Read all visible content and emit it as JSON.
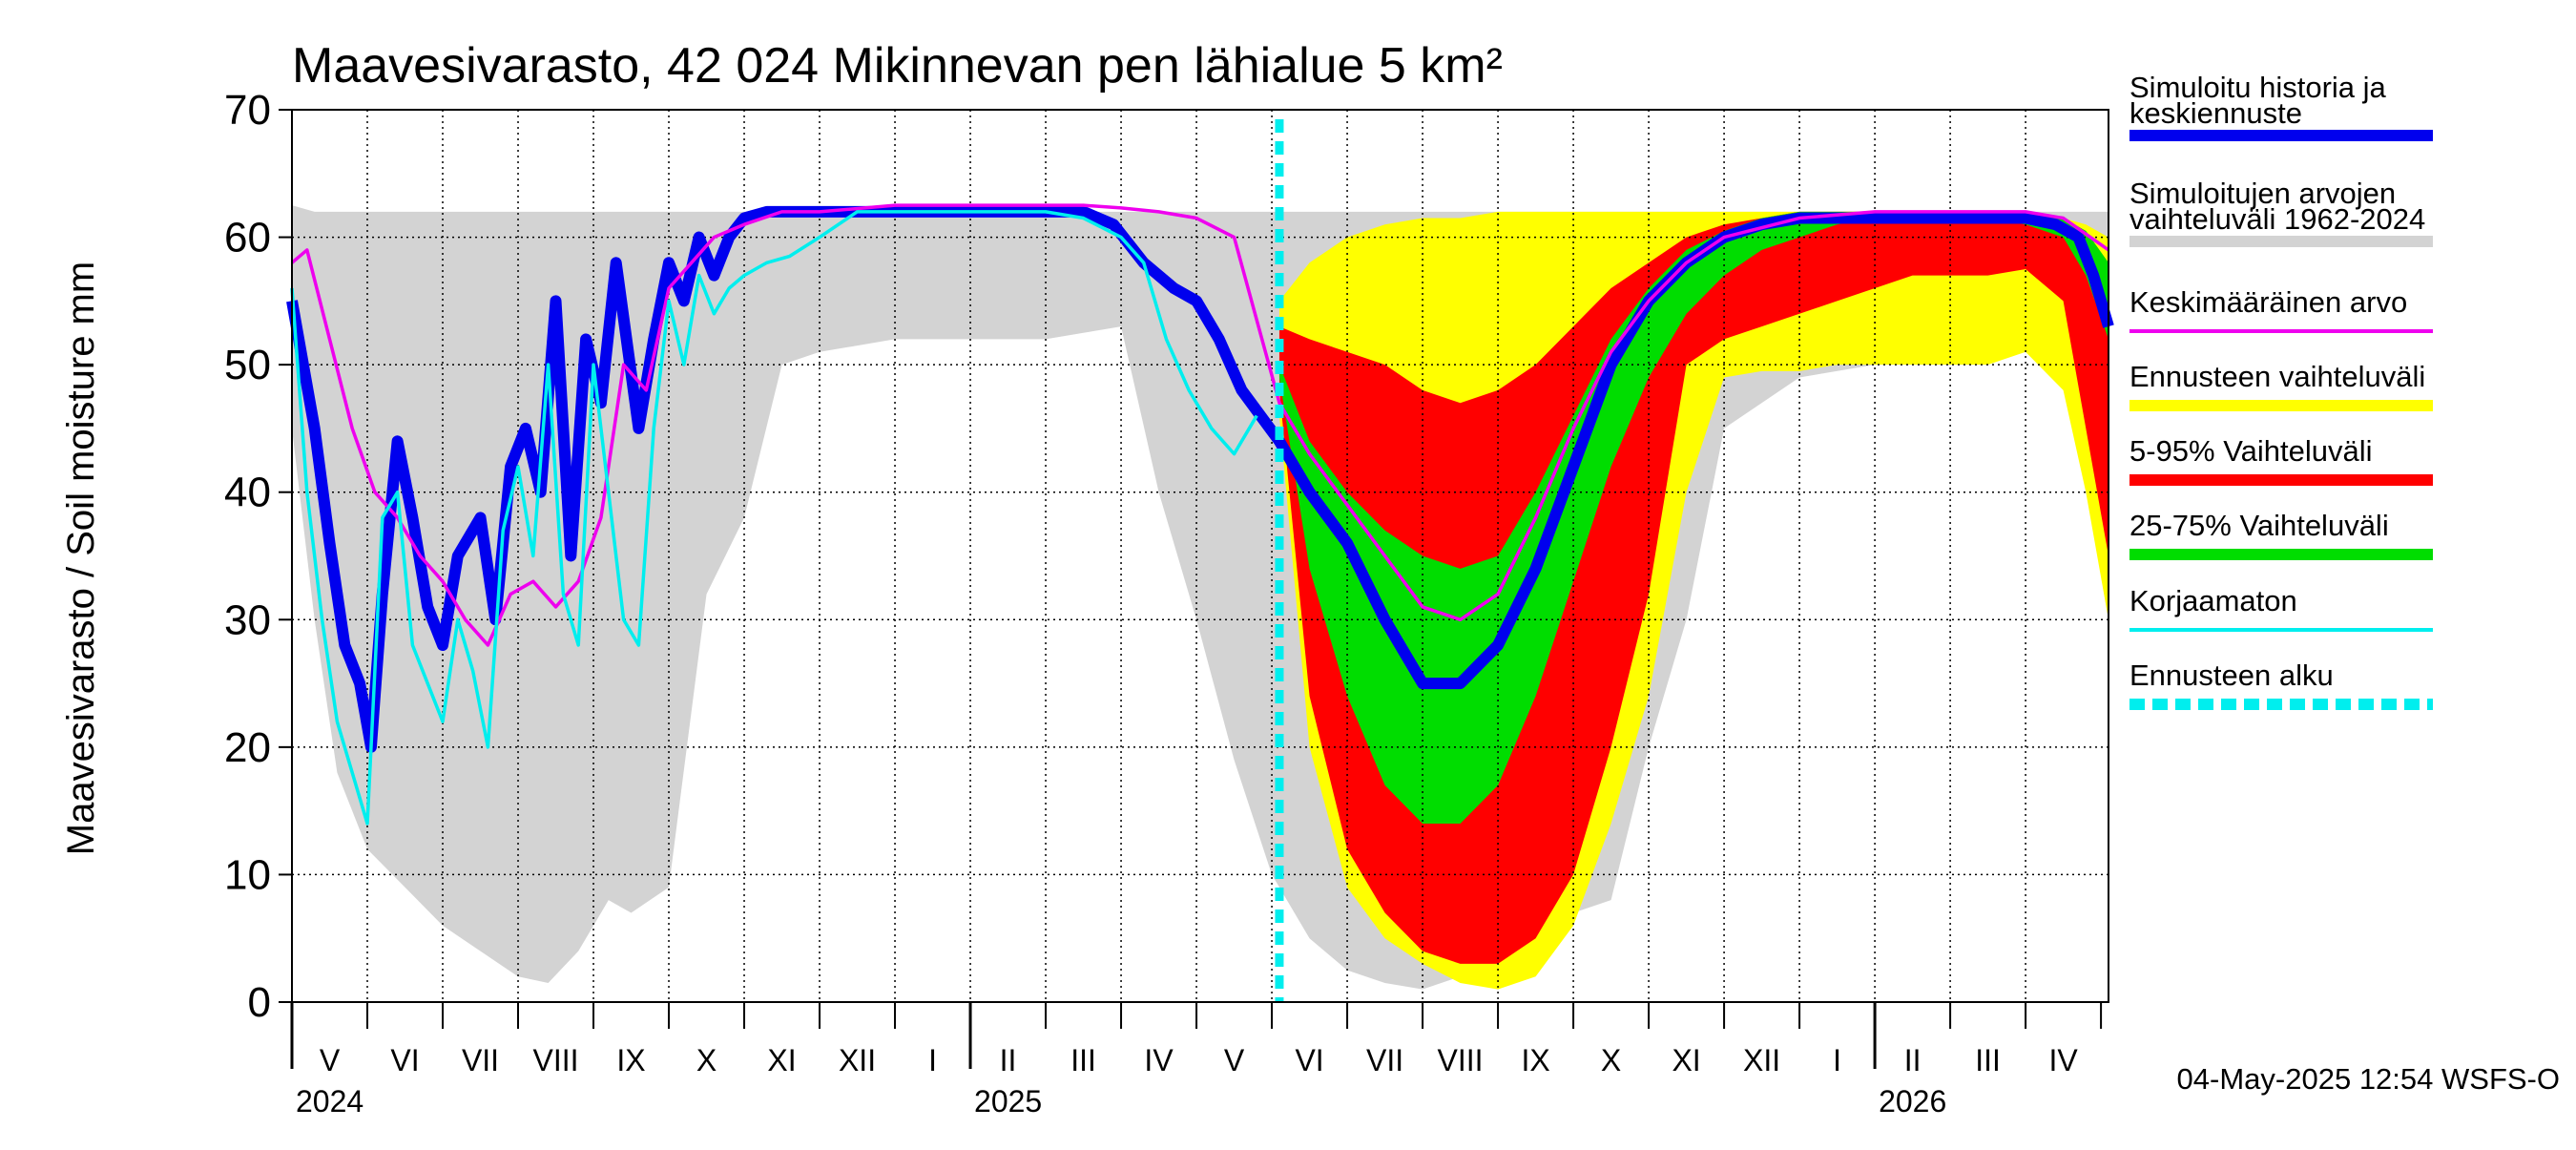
{
  "chart_data": {
    "type": "area",
    "title": "Maavesivarasto, 42 024 Mikinnevan pen lähialue 5 km²",
    "ylabel": "Maavesivarasto / Soil moisture   mm",
    "xlabel": "",
    "ylim": [
      0,
      70
    ],
    "yticks": [
      "0",
      "10",
      "20",
      "30",
      "40",
      "50",
      "60",
      "70"
    ],
    "x_unit": "months since 2024-04-01",
    "xlim": [
      0,
      24.1
    ],
    "forecast_start": 13.1,
    "grid": true,
    "month_labels": [
      {
        "label": "V",
        "x": 0.5
      },
      {
        "label": "VI",
        "x": 1.5
      },
      {
        "label": "VII",
        "x": 2.5
      },
      {
        "label": "VIII",
        "x": 3.5
      },
      {
        "label": "IX",
        "x": 4.5
      },
      {
        "label": "X",
        "x": 5.5
      },
      {
        "label": "XI",
        "x": 6.5
      },
      {
        "label": "XII",
        "x": 7.5
      },
      {
        "label": "I",
        "x": 8.5
      },
      {
        "label": "II",
        "x": 9.5
      },
      {
        "label": "III",
        "x": 10.5
      },
      {
        "label": "IV",
        "x": 11.5
      },
      {
        "label": "V",
        "x": 12.5
      },
      {
        "label": "VI",
        "x": 13.5
      },
      {
        "label": "VII",
        "x": 14.5
      },
      {
        "label": "VIII",
        "x": 15.5
      },
      {
        "label": "IX",
        "x": 16.5
      },
      {
        "label": "X",
        "x": 17.5
      },
      {
        "label": "XI",
        "x": 18.5
      },
      {
        "label": "XII",
        "x": 19.5
      },
      {
        "label": "I",
        "x": 20.5
      },
      {
        "label": "II",
        "x": 21.5
      },
      {
        "label": "III",
        "x": 22.5
      },
      {
        "label": "IV",
        "x": 23.5
      }
    ],
    "year_labels": [
      {
        "label": "2024",
        "x": 0.0
      },
      {
        "label": "2025",
        "x": 9.0
      },
      {
        "label": "2026",
        "x": 21.0
      }
    ],
    "series": [
      {
        "name": "Simuloitujen arvojen vaihteluväli 1962-2024",
        "kind": "band",
        "color": "#d3d3d3",
        "x": [
          0,
          0.3,
          0.6,
          1,
          1.5,
          2,
          2.5,
          3,
          3.4,
          3.8,
          4.2,
          4.5,
          5,
          5.5,
          6,
          6.5,
          7,
          7.5,
          8,
          9,
          10,
          10.5,
          11,
          11.5,
          12,
          12.5,
          13,
          13.5,
          14,
          14.5,
          15,
          15.5,
          16,
          16.5,
          17,
          17.5,
          18,
          18.5,
          19,
          20,
          21,
          22,
          22.6,
          23,
          23.3,
          23.6,
          23.9,
          24.1
        ],
        "upper": [
          62.5,
          62,
          62,
          62,
          62,
          62,
          62,
          62,
          62,
          62,
          62,
          62,
          62,
          62,
          62,
          62,
          62,
          62,
          62,
          62,
          62,
          62,
          62,
          62,
          62,
          62,
          62,
          62,
          62,
          62,
          62,
          62,
          62,
          62,
          62,
          62,
          62,
          62,
          62,
          62,
          62,
          62,
          62,
          62,
          62,
          62,
          62,
          62
        ],
        "lower": [
          45,
          30,
          18,
          12,
          9,
          6,
          4,
          2,
          1.5,
          4,
          8,
          7,
          9,
          32,
          38,
          50,
          51,
          51.5,
          52,
          52,
          52,
          52.5,
          53,
          40,
          30,
          19,
          10,
          5,
          2.5,
          1.5,
          1,
          2,
          3,
          4,
          7,
          8,
          20,
          30,
          45,
          49,
          50,
          51,
          51,
          51.5,
          51,
          47,
          37,
          30
        ]
      },
      {
        "name": "Ennusteen vaihteluväli",
        "kind": "band",
        "color": "#ffff00",
        "x": [
          13.1,
          13.5,
          14,
          14.5,
          15,
          15.5,
          16,
          16.5,
          17,
          17.5,
          18,
          18.5,
          19,
          19.5,
          20,
          20.5,
          21,
          21.5,
          22,
          22.5,
          23,
          23.5,
          23.8,
          24.1
        ],
        "upper": [
          55,
          58,
          60,
          61,
          61.5,
          61.5,
          62,
          62,
          62,
          62,
          62,
          62,
          62,
          62,
          62,
          62,
          62,
          62,
          62,
          62,
          62,
          61.5,
          61,
          60
        ],
        "lower": [
          46,
          20,
          9,
          5,
          3,
          1.5,
          1,
          2,
          6,
          14,
          24,
          40,
          49,
          49.5,
          49.5,
          50,
          50,
          50,
          50,
          50,
          51,
          48,
          40,
          30
        ]
      },
      {
        "name": "5-95% Vaihteluväli",
        "kind": "band",
        "color": "#ff0000",
        "x": [
          13.1,
          13.5,
          14,
          14.5,
          15,
          15.5,
          16,
          16.5,
          17,
          17.5,
          18,
          18.5,
          19,
          19.5,
          20,
          20.5,
          21,
          21.5,
          22,
          22.5,
          23,
          23.5,
          23.8,
          24.1
        ],
        "upper": [
          53,
          52,
          51,
          50,
          48,
          47,
          48,
          50,
          53,
          56,
          58,
          60,
          61,
          61.5,
          62,
          62,
          62,
          62,
          62,
          62,
          62,
          61,
          60,
          57
        ],
        "lower": [
          48,
          24,
          12,
          7,
          4,
          3,
          3,
          5,
          10,
          20,
          32,
          50,
          52,
          53,
          54,
          55,
          56,
          57,
          57,
          57,
          57.5,
          55,
          45,
          35
        ]
      },
      {
        "name": "25-75% Vaihteluväli",
        "kind": "band",
        "color": "#00dd00",
        "x": [
          13.1,
          13.5,
          14,
          14.5,
          15,
          15.5,
          16,
          16.5,
          17,
          17.5,
          18,
          18.5,
          19,
          19.5,
          20,
          20.5,
          21,
          21.5,
          22,
          22.5,
          23,
          23.5,
          23.8,
          24.1
        ],
        "upper": [
          50,
          44,
          40,
          37,
          35,
          34,
          35,
          40,
          46,
          52,
          56,
          59,
          60.5,
          61.5,
          62,
          62,
          62,
          62,
          62,
          62,
          62,
          61.5,
          60.5,
          58
        ],
        "lower": [
          49,
          34,
          24,
          17,
          14,
          14,
          17,
          24,
          33,
          42,
          49,
          54,
          57,
          59,
          60,
          61,
          61.5,
          61.5,
          61.5,
          61.5,
          61,
          60,
          57,
          52
        ]
      },
      {
        "name": "Simuloitu historia ja keskiennuste",
        "kind": "line",
        "color": "#0000ee",
        "x": [
          0,
          0.3,
          0.5,
          0.7,
          0.9,
          1.05,
          1.2,
          1.4,
          1.6,
          1.8,
          2.0,
          2.2,
          2.5,
          2.7,
          2.9,
          3.1,
          3.3,
          3.5,
          3.7,
          3.9,
          4.1,
          4.3,
          4.6,
          4.8,
          5.0,
          5.2,
          5.4,
          5.6,
          5.8,
          6.0,
          6.3,
          6.6,
          7.0,
          7.5,
          8.0,
          9.0,
          10.0,
          10.5,
          10.9,
          11.3,
          11.7,
          12.0,
          12.3,
          12.6,
          13.1,
          13.5,
          14.0,
          14.5,
          15.0,
          15.5,
          16.0,
          16.5,
          17.0,
          17.5,
          18.0,
          18.5,
          19.0,
          19.5,
          20.0,
          21.0,
          22.0,
          23.0,
          23.4,
          23.7,
          23.9,
          24.1
        ],
        "y": [
          55,
          45,
          36,
          28,
          25,
          20,
          32,
          44,
          38,
          31,
          28,
          35,
          38,
          30,
          42,
          45,
          40,
          55,
          35,
          52,
          47,
          58,
          45,
          52,
          58,
          55,
          60,
          57,
          60,
          61.5,
          62,
          62,
          62,
          62,
          62,
          62,
          62,
          62,
          61,
          58,
          56,
          55,
          52,
          48,
          44,
          40,
          36,
          30,
          25,
          25,
          28,
          34,
          42,
          50,
          55,
          58,
          60,
          61,
          61.5,
          61.5,
          61.5,
          61.5,
          61,
          60,
          57,
          53
        ]
      },
      {
        "name": "Keskimääräinen arvo",
        "kind": "line",
        "color": "#ee00ee",
        "x": [
          0,
          0.2,
          0.5,
          0.8,
          1.1,
          1.4,
          1.7,
          2.0,
          2.3,
          2.6,
          2.9,
          3.2,
          3.5,
          3.8,
          4.1,
          4.4,
          4.7,
          5.0,
          5.3,
          5.6,
          6.0,
          6.5,
          7.0,
          8.0,
          9.0,
          10.0,
          10.5,
          11.0,
          11.5,
          12.0,
          12.5,
          13.1,
          13.5,
          14.0,
          14.5,
          15.0,
          15.5,
          16.0,
          16.5,
          17.0,
          17.5,
          18.0,
          18.5,
          19.0,
          20.0,
          21.0,
          22.0,
          23.0,
          23.5,
          24.1
        ],
        "y": [
          58,
          59,
          52,
          45,
          40,
          38,
          35,
          33,
          30,
          28,
          32,
          33,
          31,
          33,
          38,
          50,
          48,
          56,
          58,
          60,
          61,
          62,
          62,
          62.5,
          62.5,
          62.5,
          62.5,
          62.3,
          62,
          61.5,
          60,
          47,
          43,
          39,
          35,
          31,
          30,
          32,
          38,
          45,
          51,
          55,
          58,
          60,
          61.5,
          62,
          62,
          62,
          61.5,
          59
        ]
      },
      {
        "name": "Korjaamaton",
        "kind": "line",
        "color": "#00eeee",
        "x": [
          0,
          0.2,
          0.4,
          0.6,
          0.8,
          1.0,
          1.2,
          1.4,
          1.6,
          1.8,
          2.0,
          2.2,
          2.4,
          2.6,
          2.8,
          3.0,
          3.2,
          3.4,
          3.6,
          3.8,
          4.0,
          4.2,
          4.4,
          4.6,
          4.8,
          5.0,
          5.2,
          5.4,
          5.6,
          5.8,
          6.0,
          6.3,
          6.6,
          7.0,
          7.5,
          8.0,
          9.0,
          10.0,
          10.5,
          11.0,
          11.3,
          11.6,
          11.9,
          12.2,
          12.5,
          12.8
        ],
        "y": [
          56,
          40,
          30,
          22,
          18,
          14,
          38,
          40,
          28,
          25,
          22,
          30,
          26,
          20,
          37,
          42,
          35,
          50,
          32,
          28,
          50,
          40,
          30,
          28,
          45,
          55,
          50,
          57,
          54,
          56,
          57,
          58,
          58.5,
          60,
          62,
          62,
          62,
          62,
          61.5,
          60,
          58,
          52,
          48,
          45,
          43,
          46
        ]
      }
    ],
    "legend": [
      {
        "label": "Simuloitu historia ja",
        "label2": "keskiennuste",
        "color": "#0000ee",
        "style": "line"
      },
      {
        "label": "Simuloitujen arvojen",
        "label2": "vaihteluväli 1962-2024",
        "color": "#d3d3d3",
        "style": "line"
      },
      {
        "label": "Keskimääräinen arvo",
        "label2": "",
        "color": "#ee00ee",
        "style": "thin"
      },
      {
        "label": "Ennusteen vaihteluväli",
        "label2": "",
        "color": "#ffff00",
        "style": "line"
      },
      {
        "label": "5-95% Vaihteluväli",
        "label2": "",
        "color": "#ff0000",
        "style": "line"
      },
      {
        "label": "25-75% Vaihteluväli",
        "label2": "",
        "color": "#00dd00",
        "style": "line"
      },
      {
        "label": "Korjaamaton",
        "label2": "",
        "color": "#00eeee",
        "style": "thin"
      },
      {
        "label": "Ennusteen alku",
        "label2": "",
        "color": "#00eeee",
        "style": "dashed"
      }
    ],
    "legend_position": "right",
    "footer": "04-May-2025 12:54 WSFS-O"
  }
}
